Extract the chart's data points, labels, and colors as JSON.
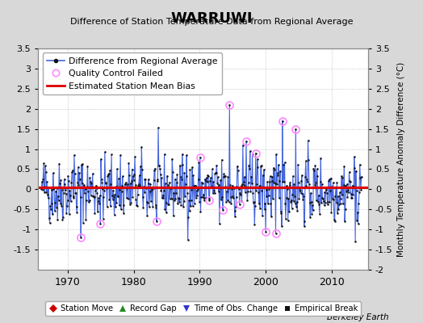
{
  "title": "WARRUWI",
  "subtitle": "Difference of Station Temperature Data from Regional Average",
  "ylabel": "Monthly Temperature Anomaly Difference (°C)",
  "xlabel_bottom": "Berkeley Earth",
  "bias": 0.05,
  "ylim": [
    -2.0,
    3.5
  ],
  "xlim": [
    1965.5,
    2015.5
  ],
  "xticks": [
    1970,
    1980,
    1990,
    2000,
    2010
  ],
  "yticks": [
    -2.0,
    -1.5,
    -1.0,
    -0.5,
    0.0,
    0.5,
    1.0,
    1.5,
    2.0,
    2.5,
    3.0,
    3.5
  ],
  "yticks_left": [
    -1.5,
    -1.0,
    -0.5,
    0.0,
    0.5,
    1.0,
    1.5,
    2.0,
    2.5,
    3.0,
    3.5
  ],
  "line_color": "#4466dd",
  "marker_color": "#111111",
  "bias_color": "#dd0000",
  "qc_color": "#ff88ff",
  "background_color": "#d8d8d8",
  "plot_bg_color": "#ffffff",
  "grid_color": "#aaaaaa",
  "seed": 42,
  "n_points": 576,
  "start_year": 1966.0,
  "end_year": 2014.5
}
